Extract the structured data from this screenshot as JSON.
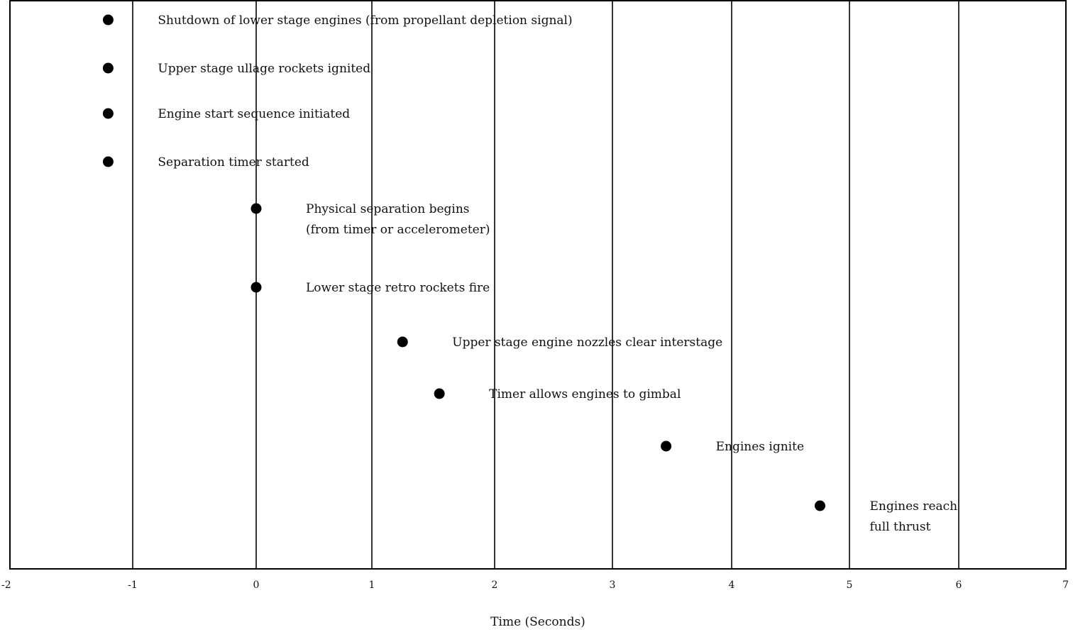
{
  "chart_data": {
    "type": "scatter",
    "title": "",
    "xlabel": "Time (Seconds)",
    "ylabel": "",
    "xlim": [
      -2,
      7
    ],
    "xticks": [
      -2,
      -1,
      0,
      1,
      2,
      3,
      4,
      5,
      6,
      7
    ],
    "grid": "vertical",
    "marker_color": "#000000",
    "events": [
      {
        "time": -1.2,
        "label": [
          "Shutdown of lower stage engines (from propellant depletion signal)"
        ]
      },
      {
        "time": -1.2,
        "label": [
          "Upper stage ullage rockets ignited"
        ]
      },
      {
        "time": -1.2,
        "label": [
          "Engine start sequence initiated"
        ]
      },
      {
        "time": -1.2,
        "label": [
          "Separation timer started"
        ]
      },
      {
        "time": 0.0,
        "label": [
          "Physical separation begins",
          "(from timer or accelerometer)"
        ]
      },
      {
        "time": 0.0,
        "label": [
          "Lower stage retro rockets fire"
        ]
      },
      {
        "time": 1.25,
        "label": [
          "Upper stage engine nozzles clear interstage"
        ]
      },
      {
        "time": 1.55,
        "label": [
          "Timer allows engines to gimbal"
        ]
      },
      {
        "time": 3.45,
        "label": [
          "Engines ignite"
        ]
      },
      {
        "time": 4.75,
        "label": [
          "Engines reach",
          "full thrust"
        ]
      }
    ]
  }
}
